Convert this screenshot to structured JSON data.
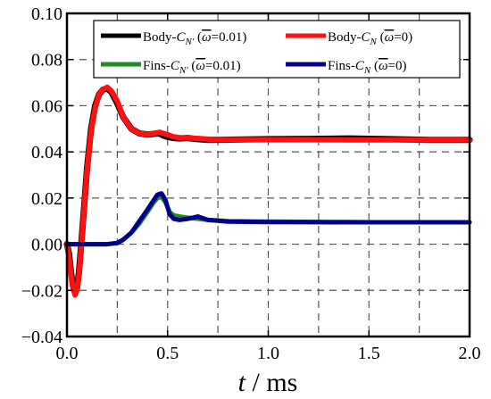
{
  "chart_data": {
    "type": "line",
    "title": "",
    "xlabel": "t / ms",
    "ylabel": "",
    "xlim": [
      0.0,
      2.0
    ],
    "ylim": [
      -0.04,
      0.1
    ],
    "x_ticks": [
      0.0,
      0.5,
      1.0,
      1.5,
      2.0
    ],
    "x_tick_labels": [
      "0.0",
      "0.5",
      "1.0",
      "1.5",
      "2.0"
    ],
    "y_ticks": [
      -0.04,
      -0.02,
      0.0,
      0.02,
      0.04,
      0.06,
      0.08,
      0.1
    ],
    "y_tick_labels": [
      "−0.04",
      "−0.02",
      "0.00",
      "0.02",
      "0.04",
      "0.06",
      "0.08",
      "0.10"
    ],
    "grid": true,
    "legend_position": "top",
    "legend_columns": 2,
    "series": [
      {
        "name": "Body-CN′ (ω̄=0.01)",
        "color": "#000000",
        "x": [
          0,
          0.01,
          0.02,
          0.03,
          0.04,
          0.05,
          0.06,
          0.08,
          0.1,
          0.12,
          0.14,
          0.16,
          0.18,
          0.2,
          0.22,
          0.25,
          0.28,
          0.32,
          0.36,
          0.4,
          0.43,
          0.46,
          0.48,
          0.5,
          0.53,
          0.56,
          0.6,
          0.65,
          0.7,
          0.8,
          1.0,
          1.2,
          1.4,
          1.6,
          1.8,
          2.0
        ],
        "y": [
          0,
          -0.004,
          -0.012,
          -0.018,
          -0.021,
          -0.019,
          -0.012,
          0.01,
          0.033,
          0.05,
          0.06,
          0.065,
          0.067,
          0.0675,
          0.066,
          0.061,
          0.055,
          0.05,
          0.048,
          0.0475,
          0.0478,
          0.048,
          0.047,
          0.0465,
          0.046,
          0.0458,
          0.046,
          0.0455,
          0.0452,
          0.0453,
          0.0455,
          0.0456,
          0.0458,
          0.0455,
          0.0452,
          0.0452
        ]
      },
      {
        "name": "Body-CN (ω̄=0)",
        "color": "#ff1111",
        "x": [
          0,
          0.01,
          0.02,
          0.03,
          0.04,
          0.05,
          0.06,
          0.08,
          0.1,
          0.12,
          0.14,
          0.16,
          0.18,
          0.2,
          0.22,
          0.25,
          0.28,
          0.32,
          0.36,
          0.4,
          0.43,
          0.46,
          0.48,
          0.5,
          0.53,
          0.56,
          0.6,
          0.65,
          0.7,
          0.8,
          1.0,
          1.2,
          1.4,
          1.6,
          1.8,
          2.0
        ],
        "y": [
          0,
          -0.005,
          -0.013,
          -0.019,
          -0.022,
          -0.02,
          -0.013,
          0.009,
          0.032,
          0.049,
          0.059,
          0.065,
          0.067,
          0.068,
          0.0665,
          0.062,
          0.055,
          0.05,
          0.048,
          0.0475,
          0.048,
          0.0485,
          0.048,
          0.0475,
          0.0465,
          0.0462,
          0.046,
          0.0458,
          0.0455,
          0.0453,
          0.0453,
          0.0453,
          0.0452,
          0.0452,
          0.0452,
          0.0452
        ]
      },
      {
        "name": "Fins-CN′ (ω̄=0.01)",
        "color": "#228b22",
        "x": [
          0,
          0.2,
          0.25,
          0.28,
          0.32,
          0.36,
          0.4,
          0.43,
          0.45,
          0.47,
          0.49,
          0.51,
          0.53,
          0.56,
          0.6,
          0.65,
          0.7,
          0.8,
          1.0,
          1.5,
          2.0
        ],
        "y": [
          0,
          0,
          0.0005,
          0.002,
          0.005,
          0.009,
          0.014,
          0.018,
          0.02,
          0.0205,
          0.018,
          0.014,
          0.0125,
          0.012,
          0.0115,
          0.011,
          0.0105,
          0.01,
          0.0098,
          0.0095,
          0.0095
        ]
      },
      {
        "name": "Fins-CN (ω̄=0)",
        "color": "#00008b",
        "x": [
          0,
          0.2,
          0.25,
          0.28,
          0.32,
          0.36,
          0.4,
          0.43,
          0.45,
          0.47,
          0.49,
          0.51,
          0.53,
          0.56,
          0.6,
          0.65,
          0.7,
          0.8,
          1.0,
          1.5,
          2.0
        ],
        "y": [
          0,
          0,
          0.0005,
          0.002,
          0.005,
          0.01,
          0.015,
          0.019,
          0.0215,
          0.022,
          0.019,
          0.013,
          0.011,
          0.0105,
          0.011,
          0.012,
          0.0105,
          0.0098,
          0.0096,
          0.0095,
          0.0095
        ]
      }
    ]
  },
  "legend": {
    "entries": [
      {
        "prefix": "Body-",
        "sym": "C",
        "sub": "N′",
        "suffix": " (",
        "omega": "ω",
        "tail": "=0.01)"
      },
      {
        "prefix": "Body-",
        "sym": "C",
        "sub": "N",
        "suffix": " (",
        "omega": "ω",
        "tail": "=0)"
      },
      {
        "prefix": "Fins-",
        "sym": "C",
        "sub": "N′",
        "suffix": " (",
        "omega": "ω",
        "tail": "=0.01)"
      },
      {
        "prefix": "Fins-",
        "sym": "C",
        "sub": "N",
        "suffix": " (",
        "omega": "ω",
        "tail": "=0)"
      }
    ]
  },
  "axis_label": {
    "var": "t",
    "sep": " / ",
    "unit": "ms"
  }
}
